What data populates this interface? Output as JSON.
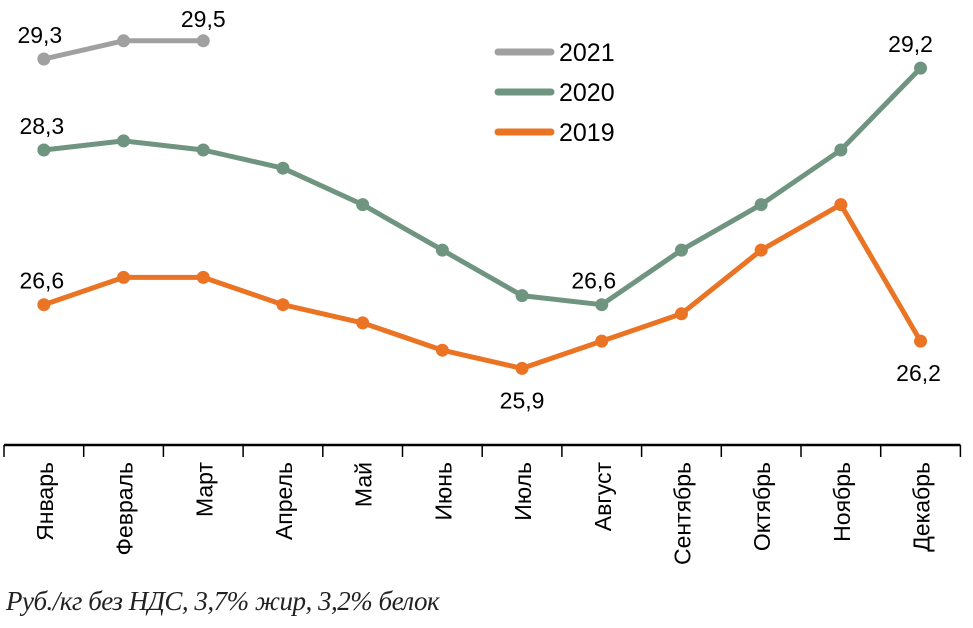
{
  "chart_data": {
    "type": "line",
    "categories": [
      "Январь",
      "Февраль",
      "Март",
      "Апрель",
      "Май",
      "Июнь",
      "Июль",
      "Август",
      "Сентябрь",
      "Октябрь",
      "Ноябрь",
      "Декабрь"
    ],
    "series": [
      {
        "name": "2021",
        "color": "#a0a0a0",
        "values": [
          29.3,
          29.5,
          29.5,
          null,
          null,
          null,
          null,
          null,
          null,
          null,
          null,
          null
        ]
      },
      {
        "name": "2020",
        "color": "#6f9580",
        "values": [
          28.3,
          28.4,
          28.3,
          28.1,
          27.7,
          27.2,
          26.7,
          26.6,
          27.2,
          27.7,
          28.3,
          29.2
        ]
      },
      {
        "name": "2019",
        "color": "#ea7424",
        "values": [
          26.6,
          26.9,
          26.9,
          26.6,
          26.4,
          26.1,
          25.9,
          26.2,
          26.5,
          27.2,
          27.7,
          26.2
        ]
      }
    ],
    "data_labels": [
      {
        "series": "2021",
        "category": "Январь",
        "text": "29,3"
      },
      {
        "series": "2021",
        "category": "Март",
        "text": "29,5"
      },
      {
        "series": "2020",
        "category": "Январь",
        "text": "28,3"
      },
      {
        "series": "2020",
        "category": "Август",
        "text": "26,6"
      },
      {
        "series": "2020",
        "category": "Декабрь",
        "text": "29,2"
      },
      {
        "series": "2019",
        "category": "Январь",
        "text": "26,6"
      },
      {
        "series": "2019",
        "category": "Июль",
        "text": "25,9"
      },
      {
        "series": "2019",
        "category": "Декабрь",
        "text": "26,2"
      }
    ],
    "legend_position": "top-center",
    "grid": false,
    "y_axis_visible": false,
    "note": "Руб./кг без НДС, 3,7% жир, 3,2% белок"
  }
}
